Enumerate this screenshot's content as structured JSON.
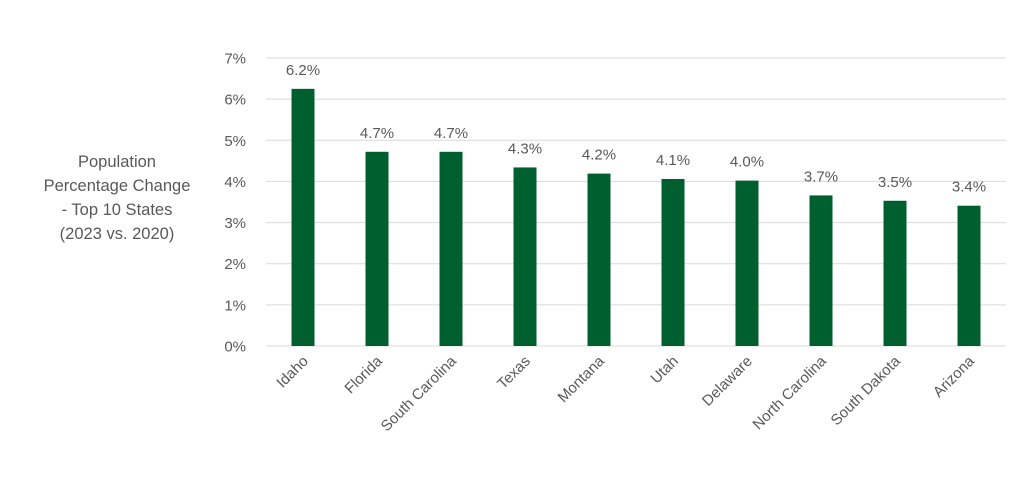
{
  "chart_data": {
    "type": "bar",
    "title_lines": [
      "Population",
      "Percentage Change",
      "- Top 10 States",
      "(2023 vs. 2020)"
    ],
    "categories": [
      "Idaho",
      "Florida",
      "South Carolina",
      "Texas",
      "Montana",
      "Utah",
      "Delaware",
      "North Carolina",
      "South Dakota",
      "Arizona"
    ],
    "values": [
      6.25,
      4.72,
      4.72,
      4.34,
      4.19,
      4.06,
      4.02,
      3.66,
      3.53,
      3.41
    ],
    "data_labels": [
      "6.2%",
      "4.7%",
      "4.7%",
      "4.3%",
      "4.2%",
      "4.1%",
      "4.0%",
      "3.7%",
      "3.5%",
      "3.4%"
    ],
    "y_ticks": [
      0,
      1,
      2,
      3,
      4,
      5,
      6,
      7
    ],
    "y_tick_labels": [
      "0%",
      "1%",
      "2%",
      "3%",
      "4%",
      "5%",
      "6%",
      "7%"
    ],
    "ylim": [
      0,
      7
    ],
    "grid": true,
    "legend": "none",
    "colors": {
      "bar": "#005F2F",
      "grid": "#D9D9D9",
      "text": "#595959"
    }
  }
}
